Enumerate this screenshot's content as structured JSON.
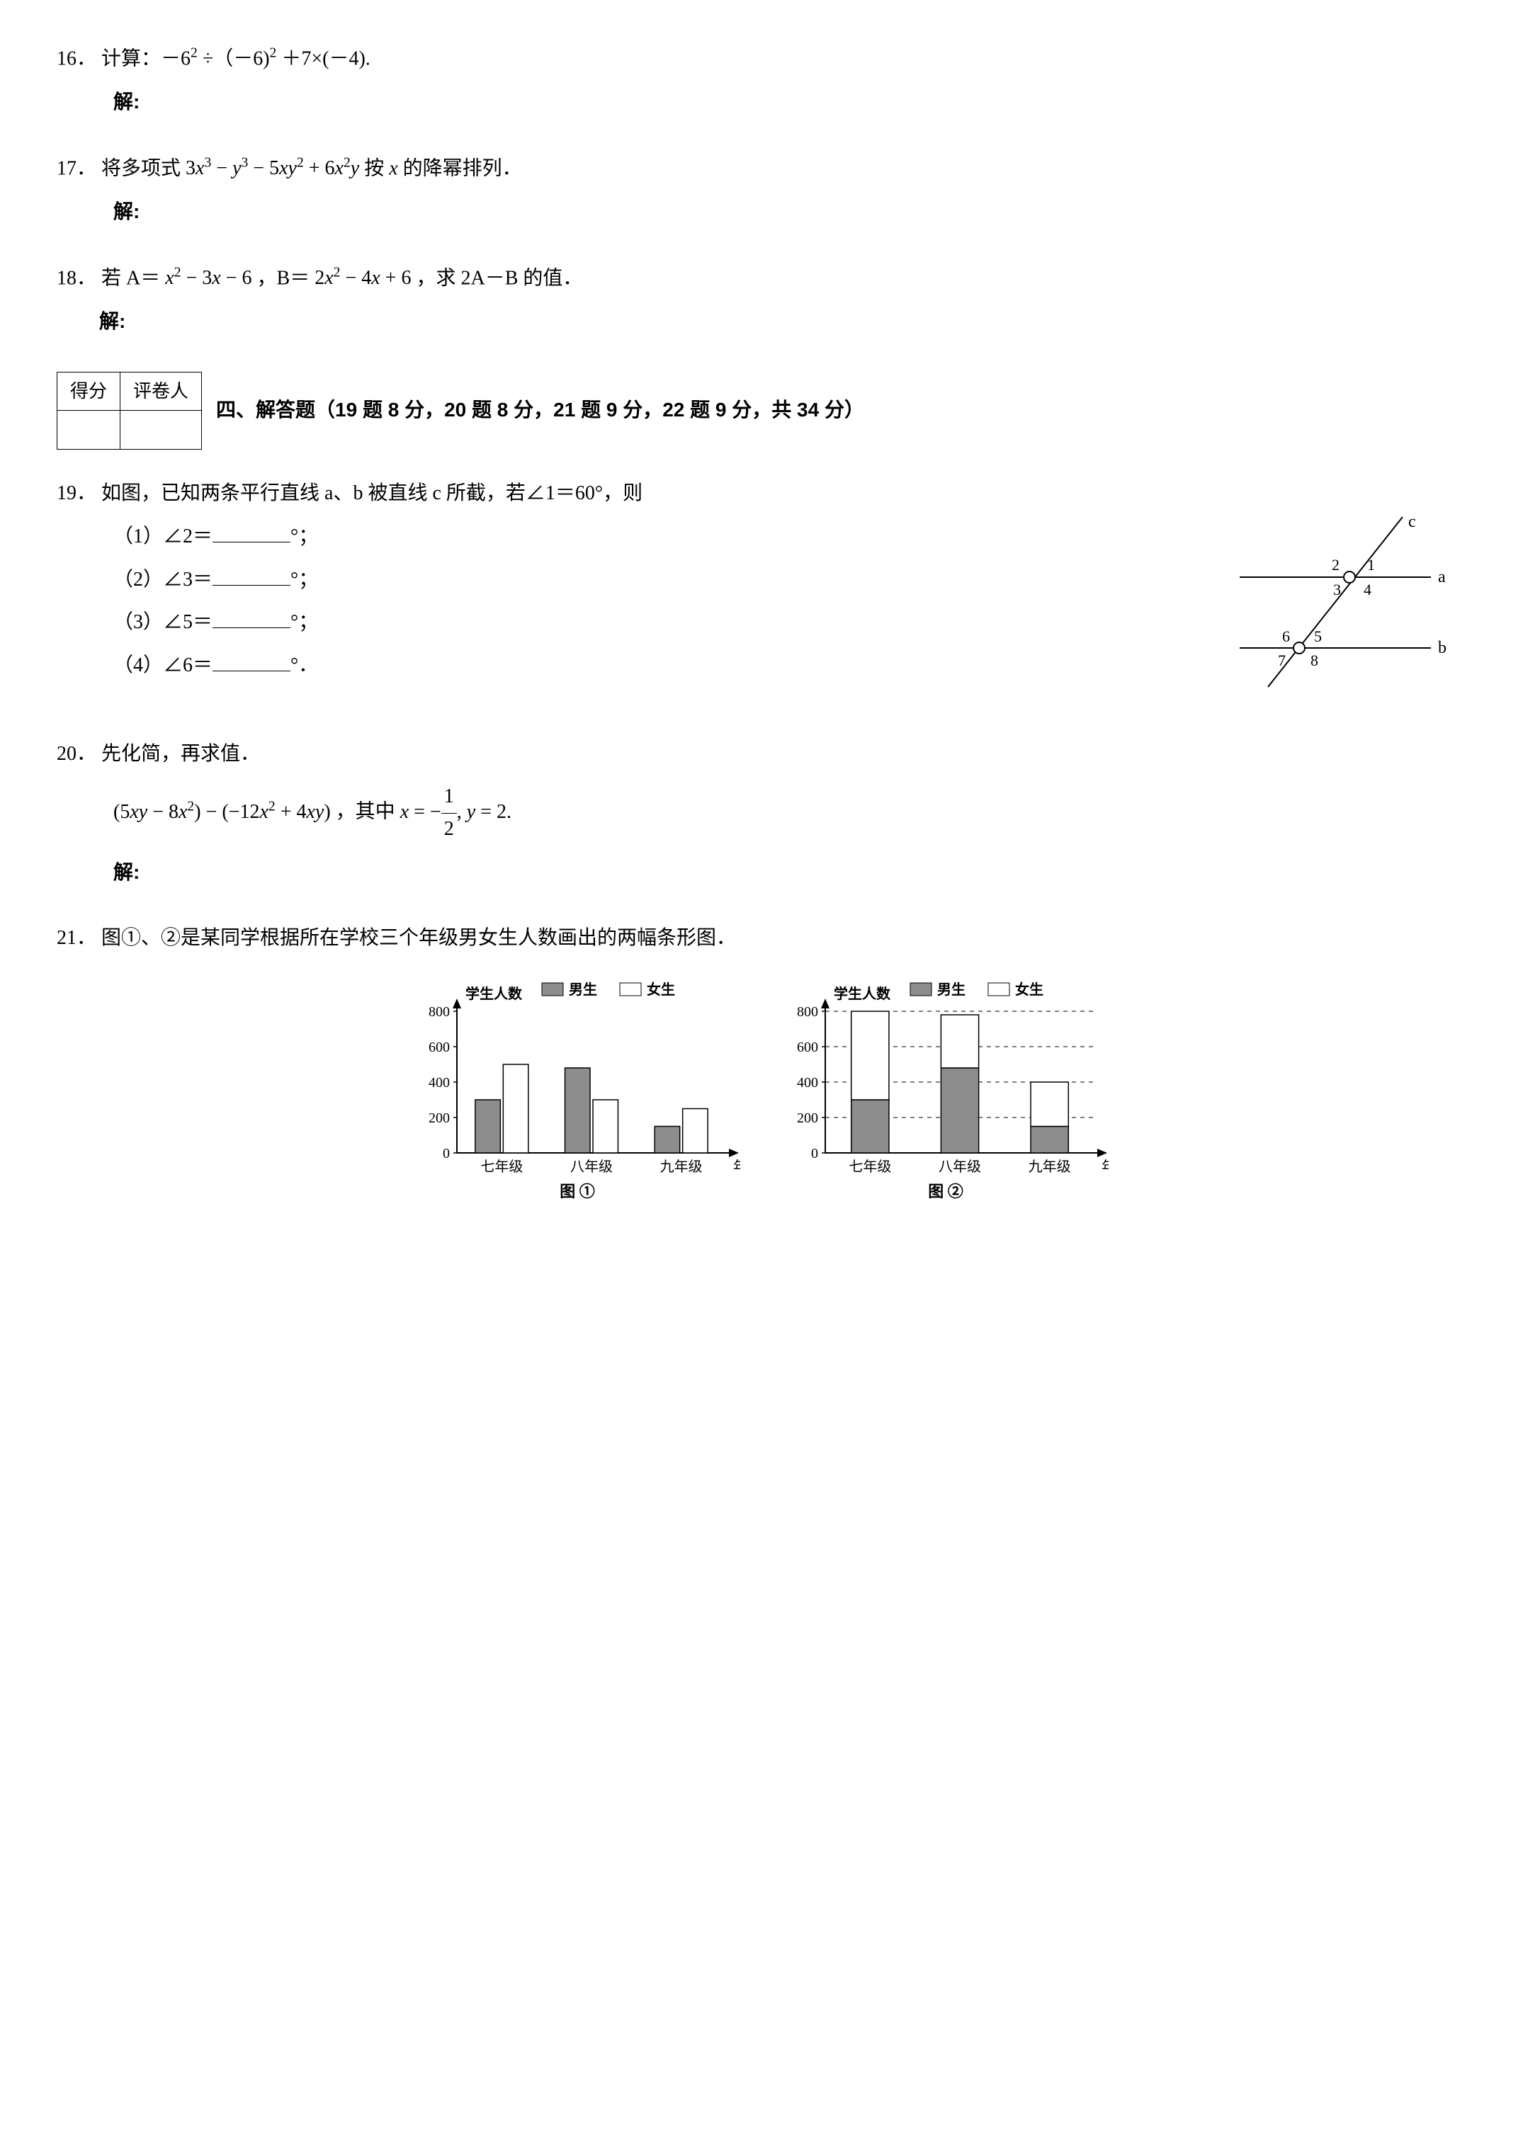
{
  "q16": {
    "num": "16．",
    "text": "计算：－6",
    "expr_rest1": " ÷（－6)",
    "expr_rest2": " ＋7×(－4).",
    "answer_label": "解:"
  },
  "q17": {
    "num": "17．",
    "text": "将多项式",
    "tail": "的降幂排列．",
    "answer_label": "解:"
  },
  "q18": {
    "num": "18．",
    "text_a": "若 A＝",
    "text_b": "，B＝",
    "text_c": "，求 2A－B 的值．",
    "answer_label": "解:"
  },
  "score_table": {
    "h1": "得分",
    "h2": "评卷人"
  },
  "section4": "四、解答题（19 题 8 分，20 题 8 分，21 题 9 分，22 题 9 分，共 34 分）",
  "q19": {
    "num": "19．",
    "text": "如图，已知两条平行直线 a、b 被直线 c 所截，若∠1＝60°，则",
    "p1": "（1）∠2＝",
    "p2": "（2）∠3＝",
    "p3": "（3）∠5＝",
    "p4": "（4）∠6＝",
    "deg": "°；",
    "deg_last": "°．",
    "fig": {
      "labels": {
        "c": "c",
        "a": "a",
        "b": "b",
        "n1": "1",
        "n2": "2",
        "n3": "3",
        "n4": "4",
        "n5": "5",
        "n6": "6",
        "n7": "7",
        "n8": "8"
      },
      "line_color": "#000",
      "circle_r": 7
    }
  },
  "q20": {
    "num": "20．",
    "text": "先化简，再求值．",
    "where": "，其中",
    "answer_label": "解:"
  },
  "q21": {
    "num": "21．",
    "text": "图①、②是某同学根据所在学校三个年级男女生人数画出的两幅条形图．",
    "chart_common": {
      "ylabel": "学生人数",
      "legend_boys": "男生",
      "legend_girls": "女生",
      "xlabel": "年级",
      "yticks": [
        0,
        200,
        400,
        600,
        800
      ],
      "categories": [
        "七年级",
        "八年级",
        "九年级"
      ],
      "fill_boys": "#8d8d8d",
      "fill_girls": "#ffffff",
      "stroke": "#000",
      "grid_color": "#000"
    },
    "chart1": {
      "title": "图 ①",
      "type": "grouped-bar",
      "boys": [
        300,
        480,
        150
      ],
      "girls": [
        500,
        300,
        250
      ]
    },
    "chart2": {
      "title": "图 ②",
      "type": "stacked-bar",
      "boys": [
        300,
        480,
        150
      ],
      "girls": [
        500,
        300,
        250
      ]
    }
  }
}
